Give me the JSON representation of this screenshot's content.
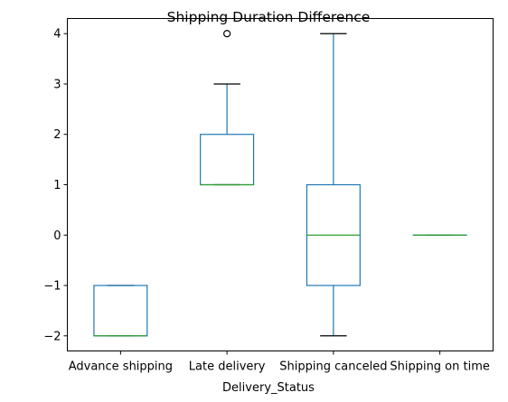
{
  "chart_data": {
    "type": "box",
    "title": "Shipping Duration Difference",
    "xlabel": "Delivery_Status",
    "ylabel": "",
    "ylim": [
      -2.3,
      4.3
    ],
    "yticks": [
      {
        "value": -2,
        "label": "−2"
      },
      {
        "value": -1,
        "label": "−1"
      },
      {
        "value": 0,
        "label": "0"
      },
      {
        "value": 1,
        "label": "1"
      },
      {
        "value": 2,
        "label": "2"
      },
      {
        "value": 3,
        "label": "3"
      },
      {
        "value": 4,
        "label": "4"
      }
    ],
    "categories": [
      "Advance shipping",
      "Late delivery",
      "Shipping canceled",
      "Shipping on time"
    ],
    "boxes": [
      {
        "category": "Advance shipping",
        "whisker_low": -2,
        "q1": -2,
        "median": -2,
        "q3": -1,
        "whisker_high": -1,
        "outliers": []
      },
      {
        "category": "Late delivery",
        "whisker_low": 1,
        "q1": 1,
        "median": 1,
        "q3": 2,
        "whisker_high": 3,
        "outliers": [
          4
        ]
      },
      {
        "category": "Shipping canceled",
        "whisker_low": -2,
        "q1": -1,
        "median": 0,
        "q3": 1,
        "whisker_high": 4,
        "outliers": []
      },
      {
        "category": "Shipping on time",
        "whisker_low": 0,
        "q1": 0,
        "median": 0,
        "q3": 0,
        "whisker_high": 0,
        "outliers": []
      }
    ],
    "colors": {
      "box": "#1f77b4",
      "median": "#2ca02c",
      "axis": "#000000",
      "background": "#ffffff"
    },
    "grid": false,
    "legend": "none"
  }
}
